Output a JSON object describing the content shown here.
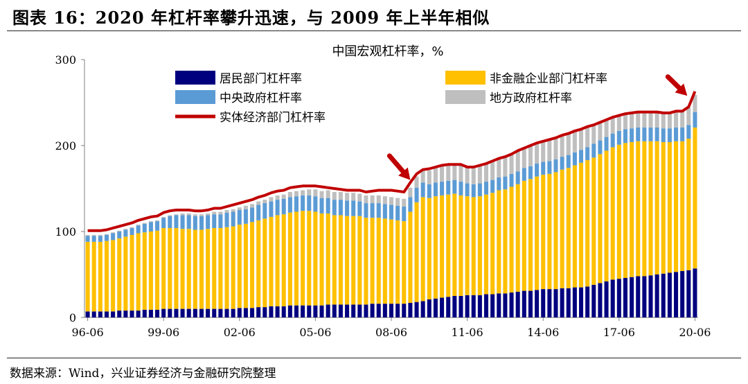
{
  "page": {
    "title": "图表 16：2020 年杠杆率攀升迅速，与 2009 年上半年相似",
    "source": "数据来源：Wind，兴业证券经济与金融研究院整理"
  },
  "chart_data": {
    "type": "bar",
    "stacked": true,
    "title": "中国宏观杠杆率，%",
    "ylim": [
      0,
      300
    ],
    "yticks": [
      0,
      100,
      200,
      300
    ],
    "xtick_labels": [
      "96-06",
      "99-06",
      "02-06",
      "05-06",
      "08-06",
      "11-06",
      "14-06",
      "17-06",
      "20-06"
    ],
    "xtick_indices": [
      0,
      12,
      24,
      36,
      48,
      60,
      72,
      84,
      96
    ],
    "legend_position": "top",
    "colors": {
      "household": "#00007f",
      "corporate": "#ffc000",
      "central": "#5b9bd5",
      "local": "#bfbfbf",
      "total": "#c00000",
      "arrow": "#c00000"
    },
    "series": [
      {
        "name": "居民部门杠杆率",
        "key": "household",
        "kind": "bar",
        "values": [
          7,
          7,
          7,
          7,
          7,
          8,
          8,
          8,
          8,
          9,
          9,
          9,
          10,
          10,
          10,
          10,
          10,
          10,
          10,
          10,
          10,
          10,
          10,
          10,
          11,
          11,
          11,
          12,
          12,
          13,
          13,
          13,
          14,
          14,
          14,
          14,
          14,
          14,
          15,
          15,
          15,
          15,
          15,
          15,
          15,
          16,
          16,
          16,
          16,
          16,
          16,
          17,
          18,
          19,
          21,
          22,
          23,
          24,
          25,
          25,
          26,
          26,
          26,
          27,
          27,
          28,
          28,
          29,
          30,
          31,
          31,
          32,
          33,
          33,
          33,
          34,
          34,
          35,
          35,
          36,
          38,
          40,
          42,
          44,
          45,
          46,
          47,
          48,
          48,
          49,
          50,
          51,
          52,
          53,
          54,
          55,
          57
        ]
      },
      {
        "name": "非金融企业部门杠杆率",
        "key": "corporate",
        "kind": "bar",
        "values": [
          81,
          81,
          81,
          82,
          83,
          84,
          86,
          88,
          90,
          90,
          91,
          92,
          94,
          94,
          94,
          93,
          93,
          92,
          92,
          93,
          94,
          94,
          95,
          96,
          97,
          98,
          100,
          101,
          103,
          104,
          106,
          107,
          108,
          109,
          110,
          110,
          109,
          107,
          106,
          104,
          104,
          103,
          103,
          103,
          101,
          100,
          100,
          99,
          98,
          97,
          96,
          106,
          116,
          121,
          118,
          119,
          119,
          119,
          119,
          117,
          115,
          114,
          115,
          116,
          118,
          120,
          121,
          123,
          125,
          128,
          130,
          132,
          133,
          134,
          136,
          138,
          140,
          142,
          145,
          147,
          148,
          150,
          152,
          154,
          156,
          157,
          157,
          157,
          157,
          156,
          155,
          153,
          152,
          152,
          151,
          153,
          164
        ]
      },
      {
        "name": "中央政府杠杆率",
        "key": "central",
        "kind": "bar",
        "values": [
          7,
          7,
          7,
          7,
          8,
          8,
          8,
          8,
          9,
          10,
          11,
          11,
          12,
          14,
          15,
          16,
          16,
          16,
          16,
          16,
          16,
          16,
          17,
          17,
          17,
          17,
          17,
          18,
          18,
          18,
          18,
          18,
          18,
          18,
          18,
          18,
          18,
          18,
          18,
          18,
          18,
          18,
          18,
          17,
          17,
          17,
          17,
          17,
          17,
          17,
          17,
          17,
          17,
          17,
          16,
          16,
          16,
          16,
          16,
          16,
          15,
          15,
          15,
          15,
          15,
          15,
          15,
          15,
          15,
          15,
          15,
          15,
          15,
          15,
          15,
          15,
          15,
          15,
          15,
          15,
          16,
          16,
          16,
          16,
          16,
          16,
          16,
          16,
          16,
          16,
          16,
          16,
          16,
          16,
          16,
          16,
          18
        ]
      },
      {
        "name": "地方政府杠杆率",
        "key": "local",
        "kind": "bar",
        "values": [
          1,
          1,
          1,
          1,
          1,
          1,
          1,
          1,
          1,
          1,
          1,
          1,
          1,
          1,
          1,
          2,
          2,
          2,
          2,
          2,
          3,
          3,
          3,
          3,
          3,
          4,
          4,
          4,
          4,
          5,
          5,
          5,
          6,
          6,
          6,
          7,
          8,
          8,
          9,
          9,
          9,
          9,
          9,
          9,
          9,
          9,
          9,
          9,
          9,
          9,
          9,
          11,
          13,
          15,
          16,
          17,
          18,
          18,
          19,
          19,
          19,
          20,
          21,
          21,
          22,
          22,
          23,
          23,
          24,
          24,
          24,
          24,
          24,
          25,
          25,
          25,
          25,
          25,
          24,
          24,
          22,
          21,
          20,
          19,
          18,
          18,
          18,
          18,
          18,
          18,
          18,
          18,
          18,
          19,
          19,
          20,
          20
        ]
      },
      {
        "name": "实体经济部门杠杆率",
        "key": "total",
        "kind": "line",
        "values": [
          101,
          101,
          101,
          102,
          104,
          106,
          108,
          110,
          113,
          115,
          117,
          118,
          122,
          124,
          125,
          125,
          125,
          124,
          124,
          125,
          127,
          127,
          129,
          131,
          133,
          135,
          137,
          140,
          142,
          145,
          147,
          148,
          151,
          152,
          153,
          153,
          153,
          152,
          151,
          150,
          149,
          148,
          148,
          148,
          146,
          147,
          148,
          148,
          148,
          147,
          146,
          157,
          167,
          172,
          173,
          175,
          177,
          178,
          178,
          178,
          175,
          175,
          177,
          179,
          182,
          185,
          187,
          190,
          194,
          197,
          200,
          203,
          205,
          207,
          209,
          212,
          214,
          217,
          219,
          222,
          224,
          227,
          230,
          233,
          235,
          237,
          238,
          239,
          239,
          239,
          239,
          238,
          238,
          240,
          240,
          245,
          263
        ]
      }
    ]
  }
}
